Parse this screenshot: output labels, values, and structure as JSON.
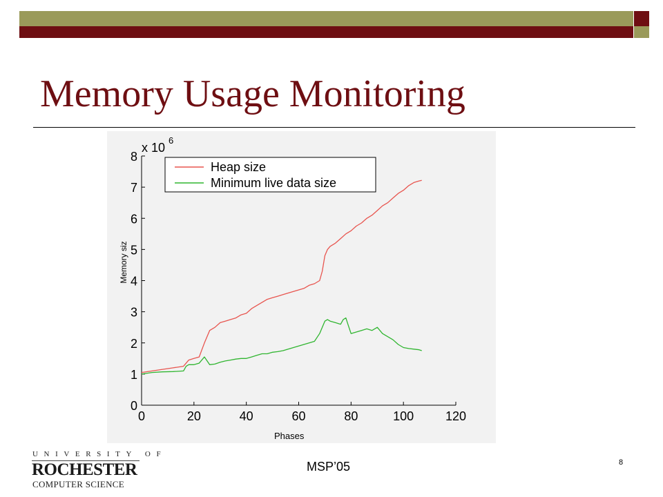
{
  "slide": {
    "title": "Memory Usage Monitoring",
    "footer": "MSP’05",
    "number": "8"
  },
  "logo": {
    "line1": "UNIVERSITY OF",
    "line2": "ROCHESTER",
    "line3": "COMPUTER SCIENCE"
  },
  "colors": {
    "bar_olive": "#9a9a5a",
    "bar_red": "#6e0e12",
    "heap": "#e8544e",
    "live": "#2fb52f"
  },
  "chart_data": {
    "type": "line",
    "xlabel": "Phases",
    "ylabel": "Memory siz",
    "y_multiplier": "x 10",
    "y_exponent": "6",
    "xlim": [
      0,
      120
    ],
    "ylim": [
      0,
      8
    ],
    "xticks": [
      0,
      20,
      40,
      60,
      80,
      100,
      120
    ],
    "yticks": [
      0,
      1,
      2,
      3,
      4,
      5,
      6,
      7,
      8
    ],
    "grid": false,
    "legend_position": "top-left",
    "series": [
      {
        "name": "Heap size",
        "color": "#e8544e",
        "x": [
          0,
          4,
          8,
          12,
          16,
          17,
          18,
          20,
          22,
          24,
          26,
          27,
          28,
          30,
          32,
          34,
          36,
          38,
          40,
          42,
          44,
          46,
          48,
          50,
          52,
          54,
          56,
          58,
          60,
          62,
          64,
          66,
          68,
          69,
          70,
          71,
          72,
          74,
          76,
          78,
          80,
          82,
          84,
          86,
          88,
          90,
          92,
          94,
          96,
          98,
          100,
          102,
          104,
          106,
          107
        ],
        "values": [
          1.05,
          1.1,
          1.15,
          1.2,
          1.25,
          1.35,
          1.45,
          1.5,
          1.55,
          2.0,
          2.4,
          2.45,
          2.5,
          2.65,
          2.7,
          2.75,
          2.8,
          2.9,
          2.95,
          3.1,
          3.2,
          3.3,
          3.4,
          3.45,
          3.5,
          3.55,
          3.6,
          3.65,
          3.7,
          3.75,
          3.85,
          3.9,
          4.0,
          4.3,
          4.8,
          5.0,
          5.1,
          5.2,
          5.35,
          5.5,
          5.6,
          5.75,
          5.85,
          6.0,
          6.1,
          6.25,
          6.4,
          6.5,
          6.65,
          6.8,
          6.9,
          7.05,
          7.15,
          7.2,
          7.22
        ]
      },
      {
        "name": "Minimum live data size",
        "color": "#2fb52f",
        "x": [
          0,
          4,
          8,
          12,
          16,
          17,
          18,
          20,
          22,
          24,
          26,
          28,
          30,
          32,
          34,
          36,
          38,
          40,
          42,
          44,
          46,
          48,
          50,
          52,
          54,
          56,
          58,
          60,
          62,
          64,
          66,
          68,
          69,
          70,
          71,
          72,
          74,
          76,
          77,
          78,
          79,
          80,
          82,
          84,
          86,
          88,
          90,
          92,
          94,
          96,
          98,
          100,
          102,
          104,
          106,
          107
        ],
        "values": [
          1.0,
          1.05,
          1.07,
          1.08,
          1.1,
          1.25,
          1.3,
          1.3,
          1.35,
          1.55,
          1.3,
          1.32,
          1.38,
          1.42,
          1.45,
          1.48,
          1.5,
          1.5,
          1.55,
          1.6,
          1.65,
          1.65,
          1.7,
          1.72,
          1.75,
          1.8,
          1.85,
          1.9,
          1.95,
          2.0,
          2.05,
          2.3,
          2.5,
          2.7,
          2.75,
          2.7,
          2.65,
          2.6,
          2.75,
          2.8,
          2.55,
          2.3,
          2.35,
          2.4,
          2.45,
          2.4,
          2.5,
          2.3,
          2.2,
          2.1,
          1.95,
          1.85,
          1.82,
          1.8,
          1.78,
          1.75
        ]
      }
    ]
  }
}
